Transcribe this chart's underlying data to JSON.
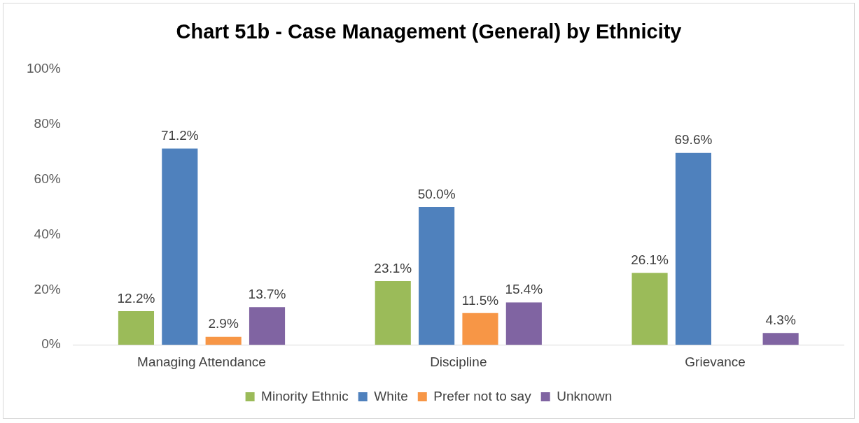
{
  "chart_data": {
    "type": "bar",
    "title": "Chart 51b - Case Management (General) by Ethnicity",
    "categories": [
      "Managing Attendance",
      "Discipline",
      "Grievance"
    ],
    "series": [
      {
        "name": "Minority Ethnic",
        "color": "#9bbb59",
        "values": [
          12.2,
          23.1,
          26.1
        ],
        "value_labels": [
          "12.2%",
          "23.1%",
          "26.1%"
        ]
      },
      {
        "name": "White",
        "color": "#4f81bd",
        "values": [
          71.2,
          50.0,
          69.6
        ],
        "value_labels": [
          "71.2%",
          "50.0%",
          "69.6%"
        ]
      },
      {
        "name": "Prefer not to say",
        "color": "#f79646",
        "values": [
          2.9,
          11.5,
          null
        ],
        "value_labels": [
          "2.9%",
          "11.5%",
          null
        ]
      },
      {
        "name": "Unknown",
        "color": "#8064a2",
        "values": [
          13.7,
          15.4,
          4.3
        ],
        "value_labels": [
          "13.7%",
          "15.4%",
          "4.3%"
        ]
      }
    ],
    "ylim": [
      0,
      100
    ],
    "yticks": [
      {
        "value": 0,
        "label": "0%"
      },
      {
        "value": 20,
        "label": "20%"
      },
      {
        "value": 40,
        "label": "40%"
      },
      {
        "value": 60,
        "label": "60%"
      },
      {
        "value": 80,
        "label": "80%"
      },
      {
        "value": 100,
        "label": "100%"
      }
    ],
    "grid": false,
    "legend": "bottom"
  }
}
